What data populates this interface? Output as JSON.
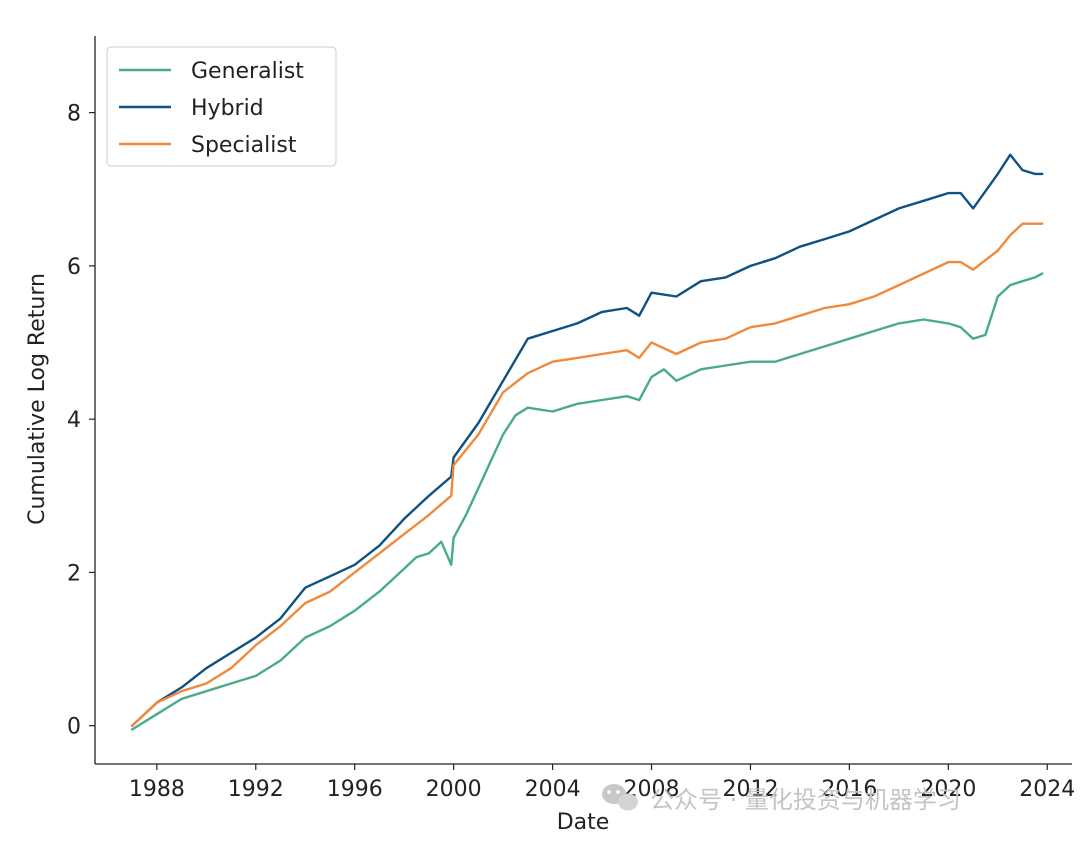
{
  "chart_data": {
    "type": "line",
    "title": "",
    "xlabel": "Date",
    "ylabel": "Cumulative Log Return",
    "xlim": [
      1985.5,
      2025.0
    ],
    "ylim": [
      -0.5,
      9.0
    ],
    "xticks": [
      1988,
      1992,
      1996,
      2000,
      2004,
      2008,
      2012,
      2016,
      2020,
      2024
    ],
    "yticks": [
      0,
      2,
      4,
      6,
      8
    ],
    "grid": false,
    "legend_position": "top-left",
    "series": [
      {
        "name": "Generalist",
        "color": "#4aab8c",
        "x": [
          1987.0,
          1988.0,
          1989.0,
          1990.0,
          1991.0,
          1992.0,
          1993.0,
          1994.0,
          1995.0,
          1996.0,
          1997.0,
          1998.0,
          1998.5,
          1999.0,
          1999.5,
          1999.9,
          2000.0,
          2000.5,
          2001.0,
          2001.5,
          2002.0,
          2002.5,
          2003.0,
          2004.0,
          2005.0,
          2006.0,
          2007.0,
          2007.5,
          2008.0,
          2008.5,
          2009.0,
          2010.0,
          2011.0,
          2012.0,
          2013.0,
          2014.0,
          2015.0,
          2016.0,
          2017.0,
          2018.0,
          2019.0,
          2020.0,
          2020.5,
          2021.0,
          2021.5,
          2022.0,
          2022.5,
          2023.0,
          2023.5,
          2023.8
        ],
        "values": [
          -0.05,
          0.15,
          0.35,
          0.45,
          0.55,
          0.65,
          0.85,
          1.15,
          1.3,
          1.5,
          1.75,
          2.05,
          2.2,
          2.25,
          2.4,
          2.1,
          2.45,
          2.75,
          3.1,
          3.45,
          3.8,
          4.05,
          4.15,
          4.1,
          4.2,
          4.25,
          4.3,
          4.25,
          4.55,
          4.65,
          4.5,
          4.65,
          4.7,
          4.75,
          4.75,
          4.85,
          4.95,
          5.05,
          5.15,
          5.25,
          5.3,
          5.25,
          5.2,
          5.05,
          5.1,
          5.6,
          5.75,
          5.8,
          5.85,
          5.9
        ]
      },
      {
        "name": "Hybrid",
        "color": "#0f5282",
        "x": [
          1987.0,
          1988.0,
          1989.0,
          1990.0,
          1991.0,
          1992.0,
          1993.0,
          1994.0,
          1995.0,
          1996.0,
          1997.0,
          1998.0,
          1999.0,
          1999.9,
          2000.0,
          2001.0,
          2002.0,
          2003.0,
          2004.0,
          2005.0,
          2006.0,
          2007.0,
          2007.5,
          2008.0,
          2009.0,
          2010.0,
          2011.0,
          2012.0,
          2013.0,
          2014.0,
          2015.0,
          2016.0,
          2017.0,
          2018.0,
          2019.0,
          2020.0,
          2020.5,
          2021.0,
          2022.0,
          2022.5,
          2023.0,
          2023.5,
          2023.8
        ],
        "values": [
          0.0,
          0.3,
          0.5,
          0.75,
          0.95,
          1.15,
          1.4,
          1.8,
          1.95,
          2.1,
          2.35,
          2.7,
          3.0,
          3.25,
          3.5,
          3.95,
          4.5,
          5.05,
          5.15,
          5.25,
          5.4,
          5.45,
          5.35,
          5.65,
          5.6,
          5.8,
          5.85,
          6.0,
          6.1,
          6.25,
          6.35,
          6.45,
          6.6,
          6.75,
          6.85,
          6.95,
          6.95,
          6.75,
          7.2,
          7.45,
          7.25,
          7.2,
          7.2
        ]
      },
      {
        "name": "Specialist",
        "color": "#ef8a3c",
        "x": [
          1987.0,
          1988.0,
          1989.0,
          1990.0,
          1991.0,
          1992.0,
          1993.0,
          1994.0,
          1995.0,
          1996.0,
          1997.0,
          1998.0,
          1999.0,
          1999.9,
          2000.0,
          2001.0,
          2002.0,
          2003.0,
          2004.0,
          2005.0,
          2006.0,
          2007.0,
          2007.5,
          2008.0,
          2009.0,
          2010.0,
          2011.0,
          2012.0,
          2013.0,
          2014.0,
          2015.0,
          2016.0,
          2017.0,
          2018.0,
          2019.0,
          2020.0,
          2020.5,
          2021.0,
          2022.0,
          2022.5,
          2023.0,
          2023.5,
          2023.8
        ],
        "values": [
          0.0,
          0.3,
          0.45,
          0.55,
          0.75,
          1.05,
          1.3,
          1.6,
          1.75,
          2.0,
          2.25,
          2.5,
          2.75,
          3.0,
          3.4,
          3.8,
          4.35,
          4.6,
          4.75,
          4.8,
          4.85,
          4.9,
          4.8,
          5.0,
          4.85,
          5.0,
          5.05,
          5.2,
          5.25,
          5.35,
          5.45,
          5.5,
          5.6,
          5.75,
          5.9,
          6.05,
          6.05,
          5.95,
          6.2,
          6.4,
          6.55,
          6.55,
          6.55
        ]
      }
    ]
  },
  "watermark": {
    "text": "公众号 · 量化投资与机器学习",
    "icon": "wechat-icon"
  }
}
